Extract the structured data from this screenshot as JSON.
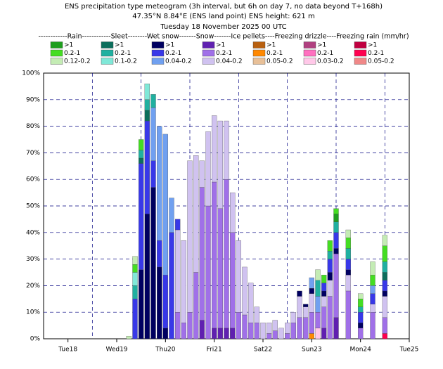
{
  "chart_data": {
    "type": "stacked_bar",
    "title": "ENS precipitation type meteogram (3h interval, but 6h on day 7, no data beyond T+168h)",
    "subtitle": "47.35°N 8.84°E (ENS land point) ENS height: 621 m",
    "subtitle2": "Tuesday 18 November 2025 00 UTC",
    "legend_header": "------------Rain------------Sleet--------Wet snow-------Snow-------Ice pellets----Freezing drizzle----Freezing rain (mm/hr)",
    "x": [
      30,
      33,
      36,
      39,
      42,
      45,
      48,
      51,
      54,
      57,
      60,
      63,
      66,
      69,
      72,
      75,
      78,
      81,
      84,
      87,
      90,
      93,
      96,
      99,
      102,
      105,
      108,
      111,
      114,
      117,
      120,
      123,
      126,
      129,
      132,
      138,
      144,
      150,
      156
    ],
    "xlim": [
      -12,
      168
    ],
    "xticks": [
      {
        "value": 0,
        "label": "Tue18"
      },
      {
        "value": 24,
        "label": "Wed19"
      },
      {
        "value": 48,
        "label": "Thu20"
      },
      {
        "value": 72,
        "label": "Fri21"
      },
      {
        "value": 96,
        "label": "Sat22"
      },
      {
        "value": 120,
        "label": "Sun23",
        "color": "#dd0000"
      },
      {
        "value": 144,
        "label": "Mon24"
      },
      {
        "value": 168,
        "label": "Tue25"
      }
    ],
    "x_gridlines": [
      12,
      36,
      60,
      84,
      108,
      132,
      156
    ],
    "ylim": [
      0,
      100
    ],
    "yticks": [
      {
        "value": 0,
        "label": "0%"
      },
      {
        "value": 10,
        "label": "10%"
      },
      {
        "value": 20,
        "label": "20%"
      },
      {
        "value": 30,
        "label": "30%"
      },
      {
        "value": 40,
        "label": "40%"
      },
      {
        "value": 50,
        "label": "50%"
      },
      {
        "value": 60,
        "label": "60%"
      },
      {
        "value": 70,
        "label": "70%"
      },
      {
        "value": 80,
        "label": "80%"
      },
      {
        "value": 90,
        "label": "90%"
      },
      {
        "value": 100,
        "label": "100%"
      }
    ],
    "grid": true,
    "series": [
      {
        "name": ">1",
        "color": "#1e9e1e",
        "values": [
          0,
          0,
          0,
          0,
          0,
          0,
          0,
          0,
          0,
          0,
          0,
          0,
          0,
          0,
          0,
          0,
          0,
          0,
          0,
          0,
          0,
          0,
          0,
          0,
          0,
          0,
          0,
          0,
          0,
          0,
          0,
          0,
          0,
          0,
          3,
          0,
          0,
          0,
          0
        ]
      },
      {
        "name": "0.2-1",
        "color": "#44dd22",
        "values": [
          0,
          3,
          4,
          0,
          0,
          0,
          0,
          0,
          0,
          0,
          0,
          0,
          0,
          0,
          0,
          0,
          0,
          0,
          0,
          0,
          0,
          0,
          0,
          0,
          0,
          0,
          0,
          0,
          0,
          0,
          0,
          0,
          3,
          4,
          2,
          4,
          3,
          4,
          6
        ]
      },
      {
        "name": "0.12-0.2",
        "color": "#c4ecb4",
        "values": [
          1,
          3,
          0,
          0,
          0,
          0,
          0,
          0,
          0,
          0,
          0,
          0,
          0,
          0,
          0,
          0,
          0,
          0,
          0,
          0,
          0,
          0,
          0,
          0,
          0,
          0,
          0,
          0,
          0,
          0,
          0,
          4,
          0,
          0,
          0,
          3,
          2,
          5,
          4
        ]
      },
      {
        "name": ">1",
        "color": "#0c6e5c",
        "values": [
          0,
          0,
          2,
          4,
          0,
          0,
          0,
          0,
          0,
          0,
          0,
          0,
          0,
          0,
          0,
          0,
          0,
          0,
          0,
          0,
          0,
          0,
          0,
          0,
          0,
          0,
          0,
          0,
          0,
          0,
          0,
          0,
          0,
          0,
          0,
          0,
          0,
          0,
          3
        ]
      },
      {
        "name": "0.2-1",
        "color": "#20b0a0",
        "values": [
          0,
          5,
          3,
          4,
          5,
          0,
          0,
          0,
          0,
          0,
          0,
          0,
          0,
          0,
          0,
          0,
          0,
          0,
          0,
          0,
          0,
          0,
          0,
          0,
          0,
          0,
          0,
          0,
          0,
          0,
          0,
          6,
          0,
          3,
          4,
          4,
          2,
          0,
          4
        ]
      },
      {
        "name": "0.1-0.2",
        "color": "#80e8d8",
        "values": [
          0,
          5,
          0,
          6,
          0,
          0,
          0,
          0,
          0,
          0,
          0,
          0,
          0,
          0,
          0,
          0,
          0,
          0,
          0,
          0,
          0,
          0,
          0,
          0,
          0,
          0,
          0,
          0,
          0,
          0,
          0,
          0,
          0,
          0,
          0,
          0,
          0,
          0,
          0
        ]
      },
      {
        "name": ">1",
        "color": "#000060",
        "values": [
          0,
          0,
          26,
          47,
          57,
          27,
          4,
          0,
          0,
          0,
          0,
          0,
          0,
          0,
          0,
          0,
          0,
          0,
          0,
          0,
          0,
          0,
          0,
          0,
          0,
          0,
          0,
          0,
          2,
          1,
          2,
          0,
          2,
          3,
          2,
          2,
          2,
          0,
          2
        ]
      },
      {
        "name": "0.2-1",
        "color": "#3838e8",
        "values": [
          0,
          15,
          40,
          35,
          10,
          10,
          20,
          40,
          4,
          0,
          0,
          0,
          0,
          0,
          0,
          0,
          0,
          0,
          0,
          0,
          0,
          0,
          0,
          0,
          0,
          0,
          0,
          0,
          0,
          0,
          0,
          0,
          3,
          5,
          6,
          4,
          4,
          4,
          4
        ]
      },
      {
        "name": "0.04-0.2",
        "color": "#70a0f0",
        "values": [
          0,
          0,
          0,
          0,
          20,
          43,
          53,
          13,
          0,
          0,
          0,
          0,
          0,
          0,
          0,
          0,
          0,
          0,
          0,
          0,
          0,
          0,
          0,
          0,
          0,
          0,
          0,
          0,
          0,
          0,
          4,
          6,
          0,
          0,
          0,
          0,
          0,
          3,
          0
        ]
      },
      {
        "name": ">1",
        "color": "#6020b0",
        "values": [
          0,
          0,
          0,
          0,
          0,
          0,
          0,
          0,
          0,
          0,
          0,
          0,
          7,
          0,
          4,
          4,
          4,
          4,
          0,
          0,
          0,
          0,
          0,
          0,
          0,
          0,
          0,
          0,
          0,
          0,
          0,
          0,
          4,
          0,
          8,
          0,
          0,
          0,
          0
        ]
      },
      {
        "name": "0.2-1",
        "color": "#a070e8",
        "values": [
          0,
          0,
          0,
          0,
          0,
          0,
          0,
          0,
          10,
          6,
          10,
          25,
          50,
          50,
          55,
          45,
          56,
          36,
          10,
          9,
          6,
          6,
          0,
          2,
          3,
          0,
          2,
          6,
          8,
          8,
          8,
          6,
          8,
          16,
          24,
          18,
          4,
          10,
          6
        ]
      },
      {
        "name": "0.04-0.2",
        "color": "#d0c2f0",
        "values": [
          0,
          0,
          0,
          0,
          0,
          0,
          0,
          0,
          31,
          31,
          57,
          44,
          10,
          28,
          25,
          33,
          22,
          15,
          27,
          18,
          15,
          6,
          6,
          4,
          4,
          4,
          4,
          4,
          8,
          4,
          7,
          0,
          4,
          6,
          0,
          6,
          0,
          3,
          8
        ]
      },
      {
        "name": ">1",
        "color": "#b86010",
        "values": [
          0,
          0,
          0,
          0,
          0,
          0,
          0,
          0,
          0,
          0,
          0,
          0,
          0,
          0,
          0,
          0,
          0,
          0,
          0,
          0,
          0,
          0,
          0,
          0,
          0,
          0,
          0,
          0,
          0,
          0,
          0,
          0,
          0,
          0,
          0,
          0,
          0,
          0,
          0
        ]
      },
      {
        "name": "0.2-1",
        "color": "#ff8800",
        "values": [
          0,
          0,
          0,
          0,
          0,
          0,
          0,
          0,
          0,
          0,
          0,
          0,
          0,
          0,
          0,
          0,
          0,
          0,
          0,
          0,
          0,
          0,
          0,
          0,
          0,
          0,
          0,
          0,
          0,
          0,
          2,
          0,
          0,
          0,
          0,
          0,
          0,
          0,
          0
        ]
      },
      {
        "name": "0.05-0.2",
        "color": "#e8c098",
        "values": [
          0,
          0,
          0,
          0,
          0,
          0,
          0,
          0,
          0,
          0,
          0,
          0,
          0,
          0,
          0,
          0,
          0,
          0,
          0,
          0,
          0,
          0,
          0,
          0,
          0,
          0,
          0,
          0,
          0,
          0,
          0,
          0,
          0,
          0,
          0,
          0,
          0,
          0,
          0
        ]
      },
      {
        "name": ">1",
        "color": "#b04080",
        "values": [
          0,
          0,
          0,
          0,
          0,
          0,
          0,
          0,
          0,
          0,
          0,
          0,
          0,
          0,
          0,
          0,
          0,
          0,
          0,
          0,
          0,
          0,
          0,
          0,
          0,
          0,
          0,
          0,
          0,
          0,
          0,
          0,
          0,
          0,
          0,
          0,
          0,
          0,
          0
        ]
      },
      {
        "name": "0.2-1",
        "color": "#ff70c0",
        "values": [
          0,
          0,
          0,
          0,
          0,
          0,
          0,
          0,
          0,
          0,
          0,
          0,
          0,
          0,
          0,
          0,
          0,
          0,
          0,
          0,
          0,
          0,
          0,
          0,
          0,
          0,
          0,
          0,
          0,
          0,
          0,
          0,
          0,
          0,
          0,
          0,
          0,
          0,
          0
        ]
      },
      {
        "name": "0.03-0.2",
        "color": "#ffc8e8",
        "values": [
          0,
          0,
          0,
          0,
          0,
          0,
          0,
          0,
          0,
          0,
          0,
          0,
          0,
          0,
          0,
          0,
          0,
          0,
          0,
          0,
          0,
          0,
          0,
          0,
          0,
          0,
          0,
          0,
          0,
          0,
          0,
          4,
          0,
          0,
          0,
          0,
          0,
          0,
          0
        ]
      },
      {
        "name": ">1",
        "color": "#c00040",
        "values": [
          0,
          0,
          0,
          0,
          0,
          0,
          0,
          0,
          0,
          0,
          0,
          0,
          0,
          0,
          0,
          0,
          0,
          0,
          0,
          0,
          0,
          0,
          0,
          0,
          0,
          0,
          0,
          0,
          0,
          0,
          0,
          0,
          0,
          0,
          0,
          0,
          0,
          0,
          0
        ]
      },
      {
        "name": "0.2-1",
        "color": "#ff0050",
        "values": [
          0,
          0,
          0,
          0,
          0,
          0,
          0,
          0,
          0,
          0,
          0,
          0,
          0,
          0,
          0,
          0,
          0,
          0,
          0,
          0,
          0,
          0,
          0,
          0,
          0,
          0,
          0,
          0,
          0,
          0,
          0,
          0,
          0,
          0,
          0,
          0,
          0,
          0,
          2
        ]
      },
      {
        "name": "0.05-0.2",
        "color": "#f08888",
        "values": [
          0,
          0,
          0,
          0,
          0,
          0,
          0,
          0,
          0,
          0,
          0,
          0,
          0,
          0,
          0,
          0,
          0,
          0,
          0,
          0,
          0,
          0,
          0,
          0,
          0,
          0,
          0,
          0,
          0,
          0,
          0,
          0,
          0,
          0,
          0,
          0,
          0,
          0,
          0
        ]
      }
    ]
  }
}
